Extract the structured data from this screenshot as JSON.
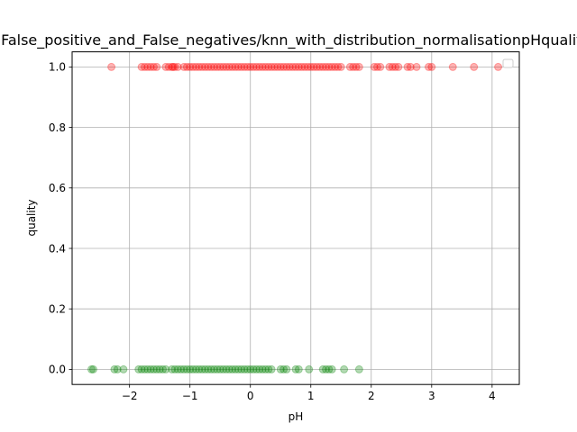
{
  "chart_data": {
    "type": "scatter",
    "title": "False_positive_and_False_negatives/knn_with_distribution_normalisationpHquality",
    "xlabel": "pH",
    "ylabel": "quality",
    "xlim": [
      -2.95,
      4.45
    ],
    "ylim": [
      -0.05,
      1.05
    ],
    "x_ticks": [
      -2,
      -1,
      0,
      1,
      2,
      3,
      4
    ],
    "x_tick_labels": [
      "−2",
      "−1",
      "0",
      "1",
      "2",
      "3",
      "4"
    ],
    "y_ticks": [
      0.0,
      0.2,
      0.4,
      0.6,
      0.8,
      1.0
    ],
    "y_tick_labels": [
      "0.0",
      "0.2",
      "0.4",
      "0.6",
      "0.8",
      "1.0"
    ],
    "grid": true,
    "legend": "top-right (empty)",
    "series": [
      {
        "color": "#ff0000",
        "alpha": 0.3,
        "y": 1.0,
        "x": [
          -2.3,
          -1.8,
          -1.75,
          -1.7,
          -1.65,
          -1.6,
          -1.55,
          -1.4,
          -1.35,
          -1.3,
          -1.28,
          -1.25,
          -1.2,
          -1.1,
          -1.05,
          -1.0,
          -0.95,
          -0.9,
          -0.85,
          -0.8,
          -0.75,
          -0.7,
          -0.65,
          -0.6,
          -0.55,
          -0.5,
          -0.45,
          -0.4,
          -0.35,
          -0.3,
          -0.25,
          -0.2,
          -0.15,
          -0.1,
          -0.05,
          0.0,
          0.05,
          0.1,
          0.15,
          0.2,
          0.25,
          0.3,
          0.35,
          0.4,
          0.45,
          0.5,
          0.55,
          0.6,
          0.65,
          0.7,
          0.75,
          0.8,
          0.85,
          0.9,
          0.95,
          1.0,
          1.05,
          1.1,
          1.15,
          1.2,
          1.25,
          1.3,
          1.35,
          1.4,
          1.45,
          1.5,
          1.65,
          1.7,
          1.75,
          1.8,
          2.05,
          2.1,
          2.15,
          2.3,
          2.35,
          2.4,
          2.45,
          2.6,
          2.65,
          2.75,
          2.95,
          3.0,
          3.35,
          3.7,
          4.1
        ]
      },
      {
        "color": "#008000",
        "alpha": 0.3,
        "y": 0.0,
        "x": [
          -2.63,
          -2.6,
          -2.25,
          -2.2,
          -2.1,
          -1.85,
          -1.8,
          -1.75,
          -1.7,
          -1.65,
          -1.6,
          -1.55,
          -1.5,
          -1.45,
          -1.4,
          -1.3,
          -1.25,
          -1.2,
          -1.15,
          -1.1,
          -1.05,
          -1.0,
          -0.95,
          -0.9,
          -0.85,
          -0.8,
          -0.75,
          -0.7,
          -0.65,
          -0.6,
          -0.55,
          -0.5,
          -0.45,
          -0.4,
          -0.35,
          -0.3,
          -0.25,
          -0.2,
          -0.15,
          -0.1,
          -0.05,
          0.0,
          0.05,
          0.1,
          0.15,
          0.2,
          0.25,
          0.3,
          0.35,
          0.5,
          0.55,
          0.6,
          0.75,
          0.8,
          0.97,
          1.2,
          1.25,
          1.3,
          1.35,
          1.55,
          1.8
        ]
      }
    ]
  }
}
